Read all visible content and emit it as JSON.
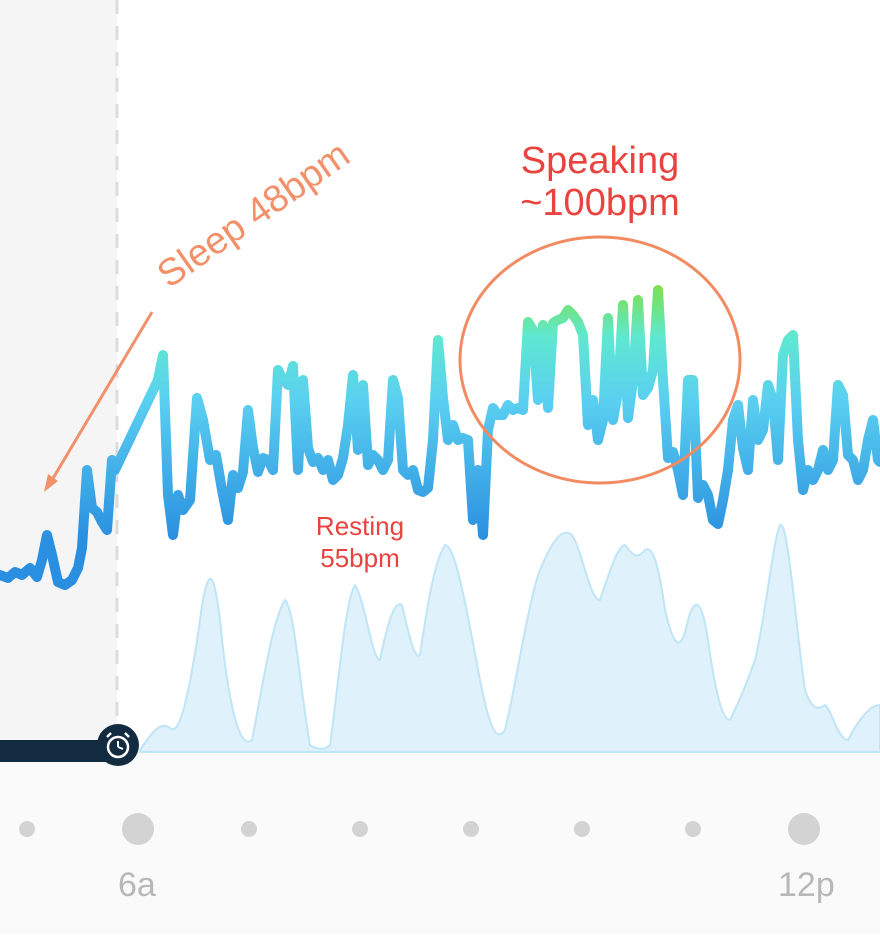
{
  "annotations": {
    "speaking_line1": "Speaking",
    "speaking_line2": "~100bpm",
    "resting_line1": "Resting",
    "resting_line2": "55bpm",
    "sleep": "Sleep 48bpm"
  },
  "timeline": {
    "ticks": [
      "6a",
      "12p"
    ],
    "alarm_icon": "alarm-clock-icon"
  },
  "colors": {
    "annotation": "#e8433f",
    "sleep_annotation": "#f2906a",
    "line_low": "#2a8fe0",
    "line_mid": "#5ad0f0",
    "line_high": "#7de04a",
    "activity_fill": "#dff1fb",
    "sleep_bar": "#122b40"
  }
}
